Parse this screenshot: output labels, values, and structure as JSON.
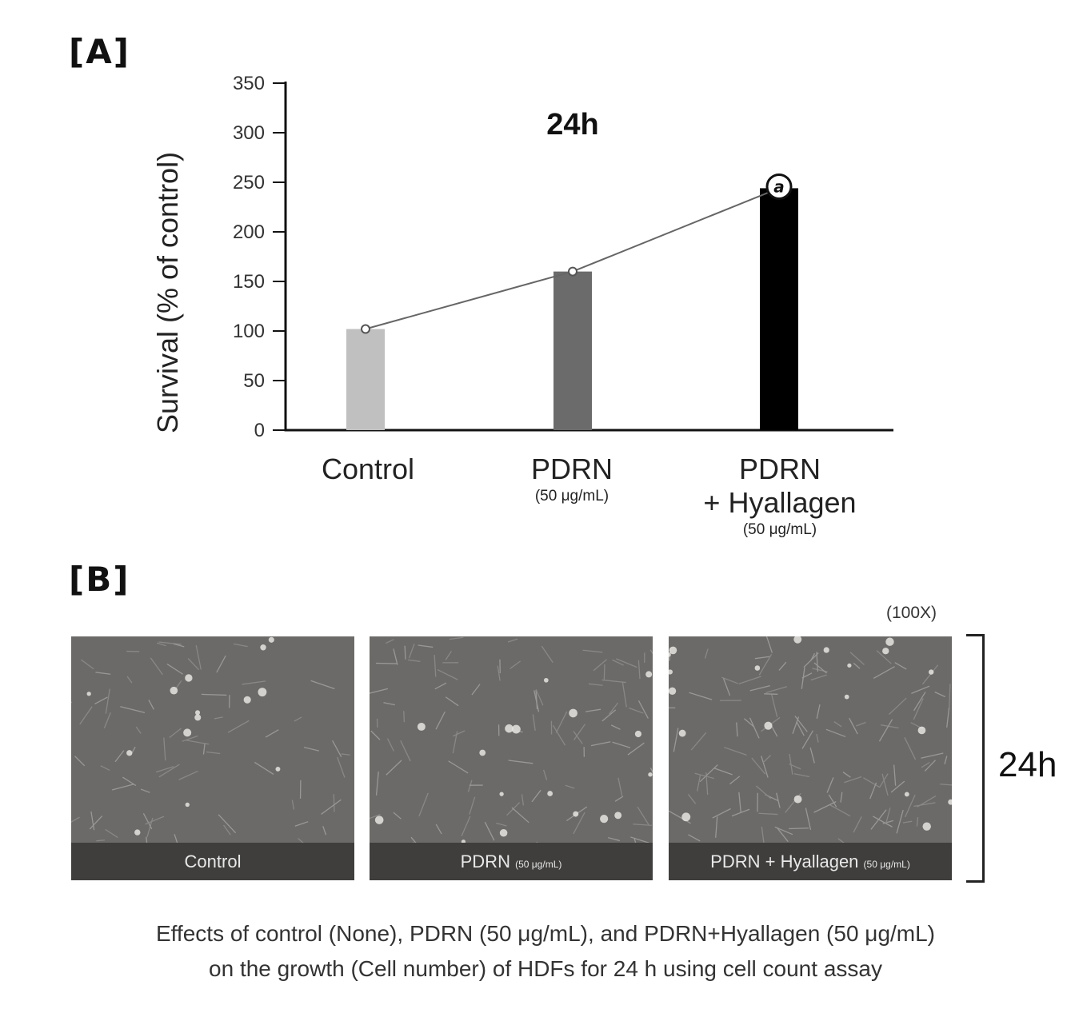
{
  "panel_a_label": "[A]",
  "panel_b_label": "[B]",
  "chart_data": {
    "type": "bar",
    "title": "24h",
    "ylabel": "Survival (% of control)",
    "xlabel": "",
    "ylim": [
      0,
      350
    ],
    "yticks": [
      0,
      50,
      100,
      150,
      200,
      250,
      300,
      350
    ],
    "categories": [
      "Control",
      "PDRN",
      "PDRN\n+ Hyallagen"
    ],
    "category_main": [
      "Control",
      "PDRN",
      "PDRN"
    ],
    "category_line2": [
      "",
      "",
      "+ Hyallagen"
    ],
    "category_sub": [
      "",
      "(50 μg/mL)",
      "(50 μg/mL)"
    ],
    "values": [
      102,
      160,
      244
    ],
    "bar_colors": [
      "#c0c0c0",
      "#6b6b6b",
      "#000000"
    ],
    "trend_line": true,
    "annotations": [
      {
        "category": "PDRN\n+ Hyallagen",
        "text": "a"
      }
    ],
    "grid": false,
    "legend": "none"
  },
  "panel_b": {
    "magnification": "(100X)",
    "time_label": "24h",
    "images": [
      {
        "label": "Control",
        "sub": ""
      },
      {
        "label": "PDRN",
        "sub": "(50 μg/mL)"
      },
      {
        "label": "PDRN + Hyallagen",
        "sub": "(50 μg/mL)"
      }
    ]
  },
  "caption": {
    "line1": "Effects of control (None), PDRN (50 μg/mL), and PDRN+Hyallagen (50 μg/mL)",
    "line2": "on the growth (Cell number) of HDFs for 24 h using cell count assay"
  }
}
